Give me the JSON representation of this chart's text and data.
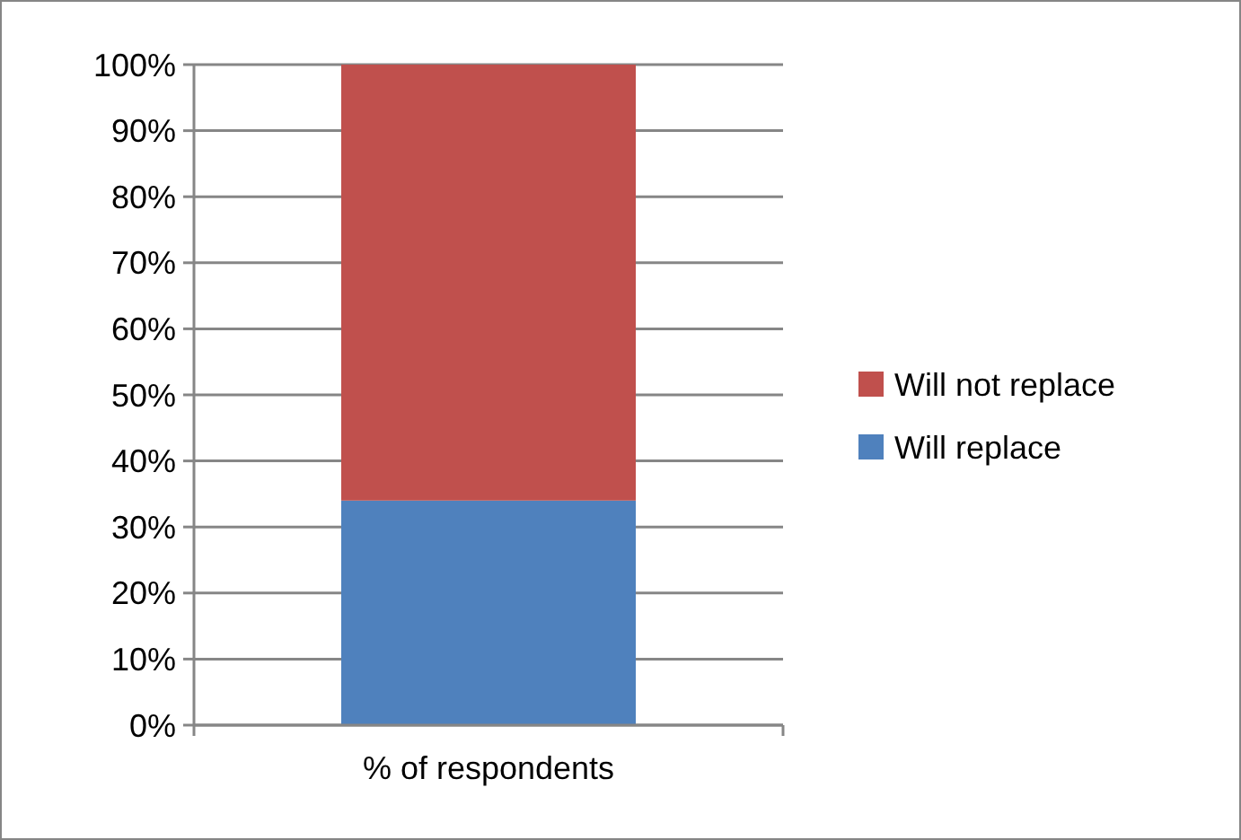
{
  "chart_data": {
    "type": "bar",
    "stacked": true,
    "categories": [
      "% of respondents"
    ],
    "series": [
      {
        "name": "Will replace",
        "color": "#4f81bd",
        "values": [
          34
        ]
      },
      {
        "name": "Will not replace",
        "color": "#c0504d",
        "values": [
          66
        ]
      }
    ],
    "ylim": [
      0,
      100
    ],
    "yticks": [
      {
        "value": 0,
        "label": "0%"
      },
      {
        "value": 10,
        "label": "10%"
      },
      {
        "value": 20,
        "label": "20%"
      },
      {
        "value": 30,
        "label": "30%"
      },
      {
        "value": 40,
        "label": "40%"
      },
      {
        "value": 50,
        "label": "50%"
      },
      {
        "value": 60,
        "label": "60%"
      },
      {
        "value": 70,
        "label": "70%"
      },
      {
        "value": 80,
        "label": "80%"
      },
      {
        "value": 90,
        "label": "90%"
      },
      {
        "value": 100,
        "label": "100%"
      }
    ],
    "grid": "y",
    "legend": "right"
  }
}
